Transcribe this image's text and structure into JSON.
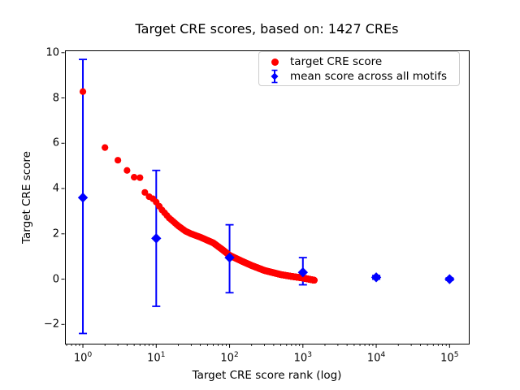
{
  "chart_data": {
    "type": "scatter",
    "title": "Target CRE scores, based on: 1427 CREs",
    "xlabel": "Target CRE score rank (log)",
    "ylabel": "Target CRE score",
    "x_scale": "log",
    "y_scale": "linear",
    "xlim": [
      0.57,
      183000
    ],
    "ylim": [
      -2.85,
      10.1
    ],
    "x_tick_base": "10",
    "x_tick_exponents": [
      "0",
      "1",
      "2",
      "3",
      "4",
      "5"
    ],
    "y_ticks": [
      -2,
      0,
      2,
      4,
      6,
      8,
      10
    ],
    "grid": false,
    "colors": {
      "red": "#ff0000",
      "blue": "#0000ff",
      "axes": "#000000",
      "legend_border": "#cccccc",
      "background": "#ffffff"
    },
    "legend": {
      "position": "upper right",
      "entries": [
        {
          "label": "target CRE score",
          "marker": "red-circle",
          "color": "#ff0000"
        },
        {
          "label": "mean score across all motifs",
          "marker": "blue-diamond-errorbar",
          "color": "#0000ff"
        }
      ]
    },
    "series": [
      {
        "name": "target CRE score",
        "marker": "circle",
        "color": "#ff0000",
        "x_description": "one point per integer rank 1..1427; values read from plot, interpolated in log10(rank) between control points",
        "n_points": 1427,
        "control_points": [
          [
            1,
            8.28
          ],
          [
            2,
            5.81
          ],
          [
            3,
            5.25
          ],
          [
            4,
            4.8
          ],
          [
            5,
            4.5
          ],
          [
            6,
            4.48
          ],
          [
            7,
            3.83
          ],
          [
            8,
            3.64
          ],
          [
            9,
            3.55
          ],
          [
            10,
            3.4
          ],
          [
            12,
            3.05
          ],
          [
            15,
            2.7
          ],
          [
            20,
            2.35
          ],
          [
            25,
            2.12
          ],
          [
            30,
            2.0
          ],
          [
            40,
            1.85
          ],
          [
            60,
            1.6
          ],
          [
            80,
            1.3
          ],
          [
            100,
            1.05
          ],
          [
            150,
            0.78
          ],
          [
            200,
            0.6
          ],
          [
            300,
            0.38
          ],
          [
            500,
            0.2
          ],
          [
            700,
            0.12
          ],
          [
            1000,
            0.05
          ],
          [
            1427,
            -0.05
          ]
        ]
      },
      {
        "name": "mean score across all motifs",
        "marker": "diamond",
        "color": "#0000ff",
        "points": [
          {
            "rank": 1,
            "mean": 3.6,
            "err_low": -2.4,
            "err_high": 9.7
          },
          {
            "rank": 10,
            "mean": 1.8,
            "err_low": -1.2,
            "err_high": 4.8
          },
          {
            "rank": 100,
            "mean": 0.95,
            "err_low": -0.6,
            "err_high": 2.4
          },
          {
            "rank": 1000,
            "mean": 0.3,
            "err_low": -0.25,
            "err_high": 0.95
          },
          {
            "rank": 10000,
            "mean": 0.08,
            "err_low": 0.0,
            "err_high": 0.16
          },
          {
            "rank": 100000,
            "mean": 0.0,
            "err_low": -0.05,
            "err_high": 0.05
          }
        ]
      }
    ]
  }
}
